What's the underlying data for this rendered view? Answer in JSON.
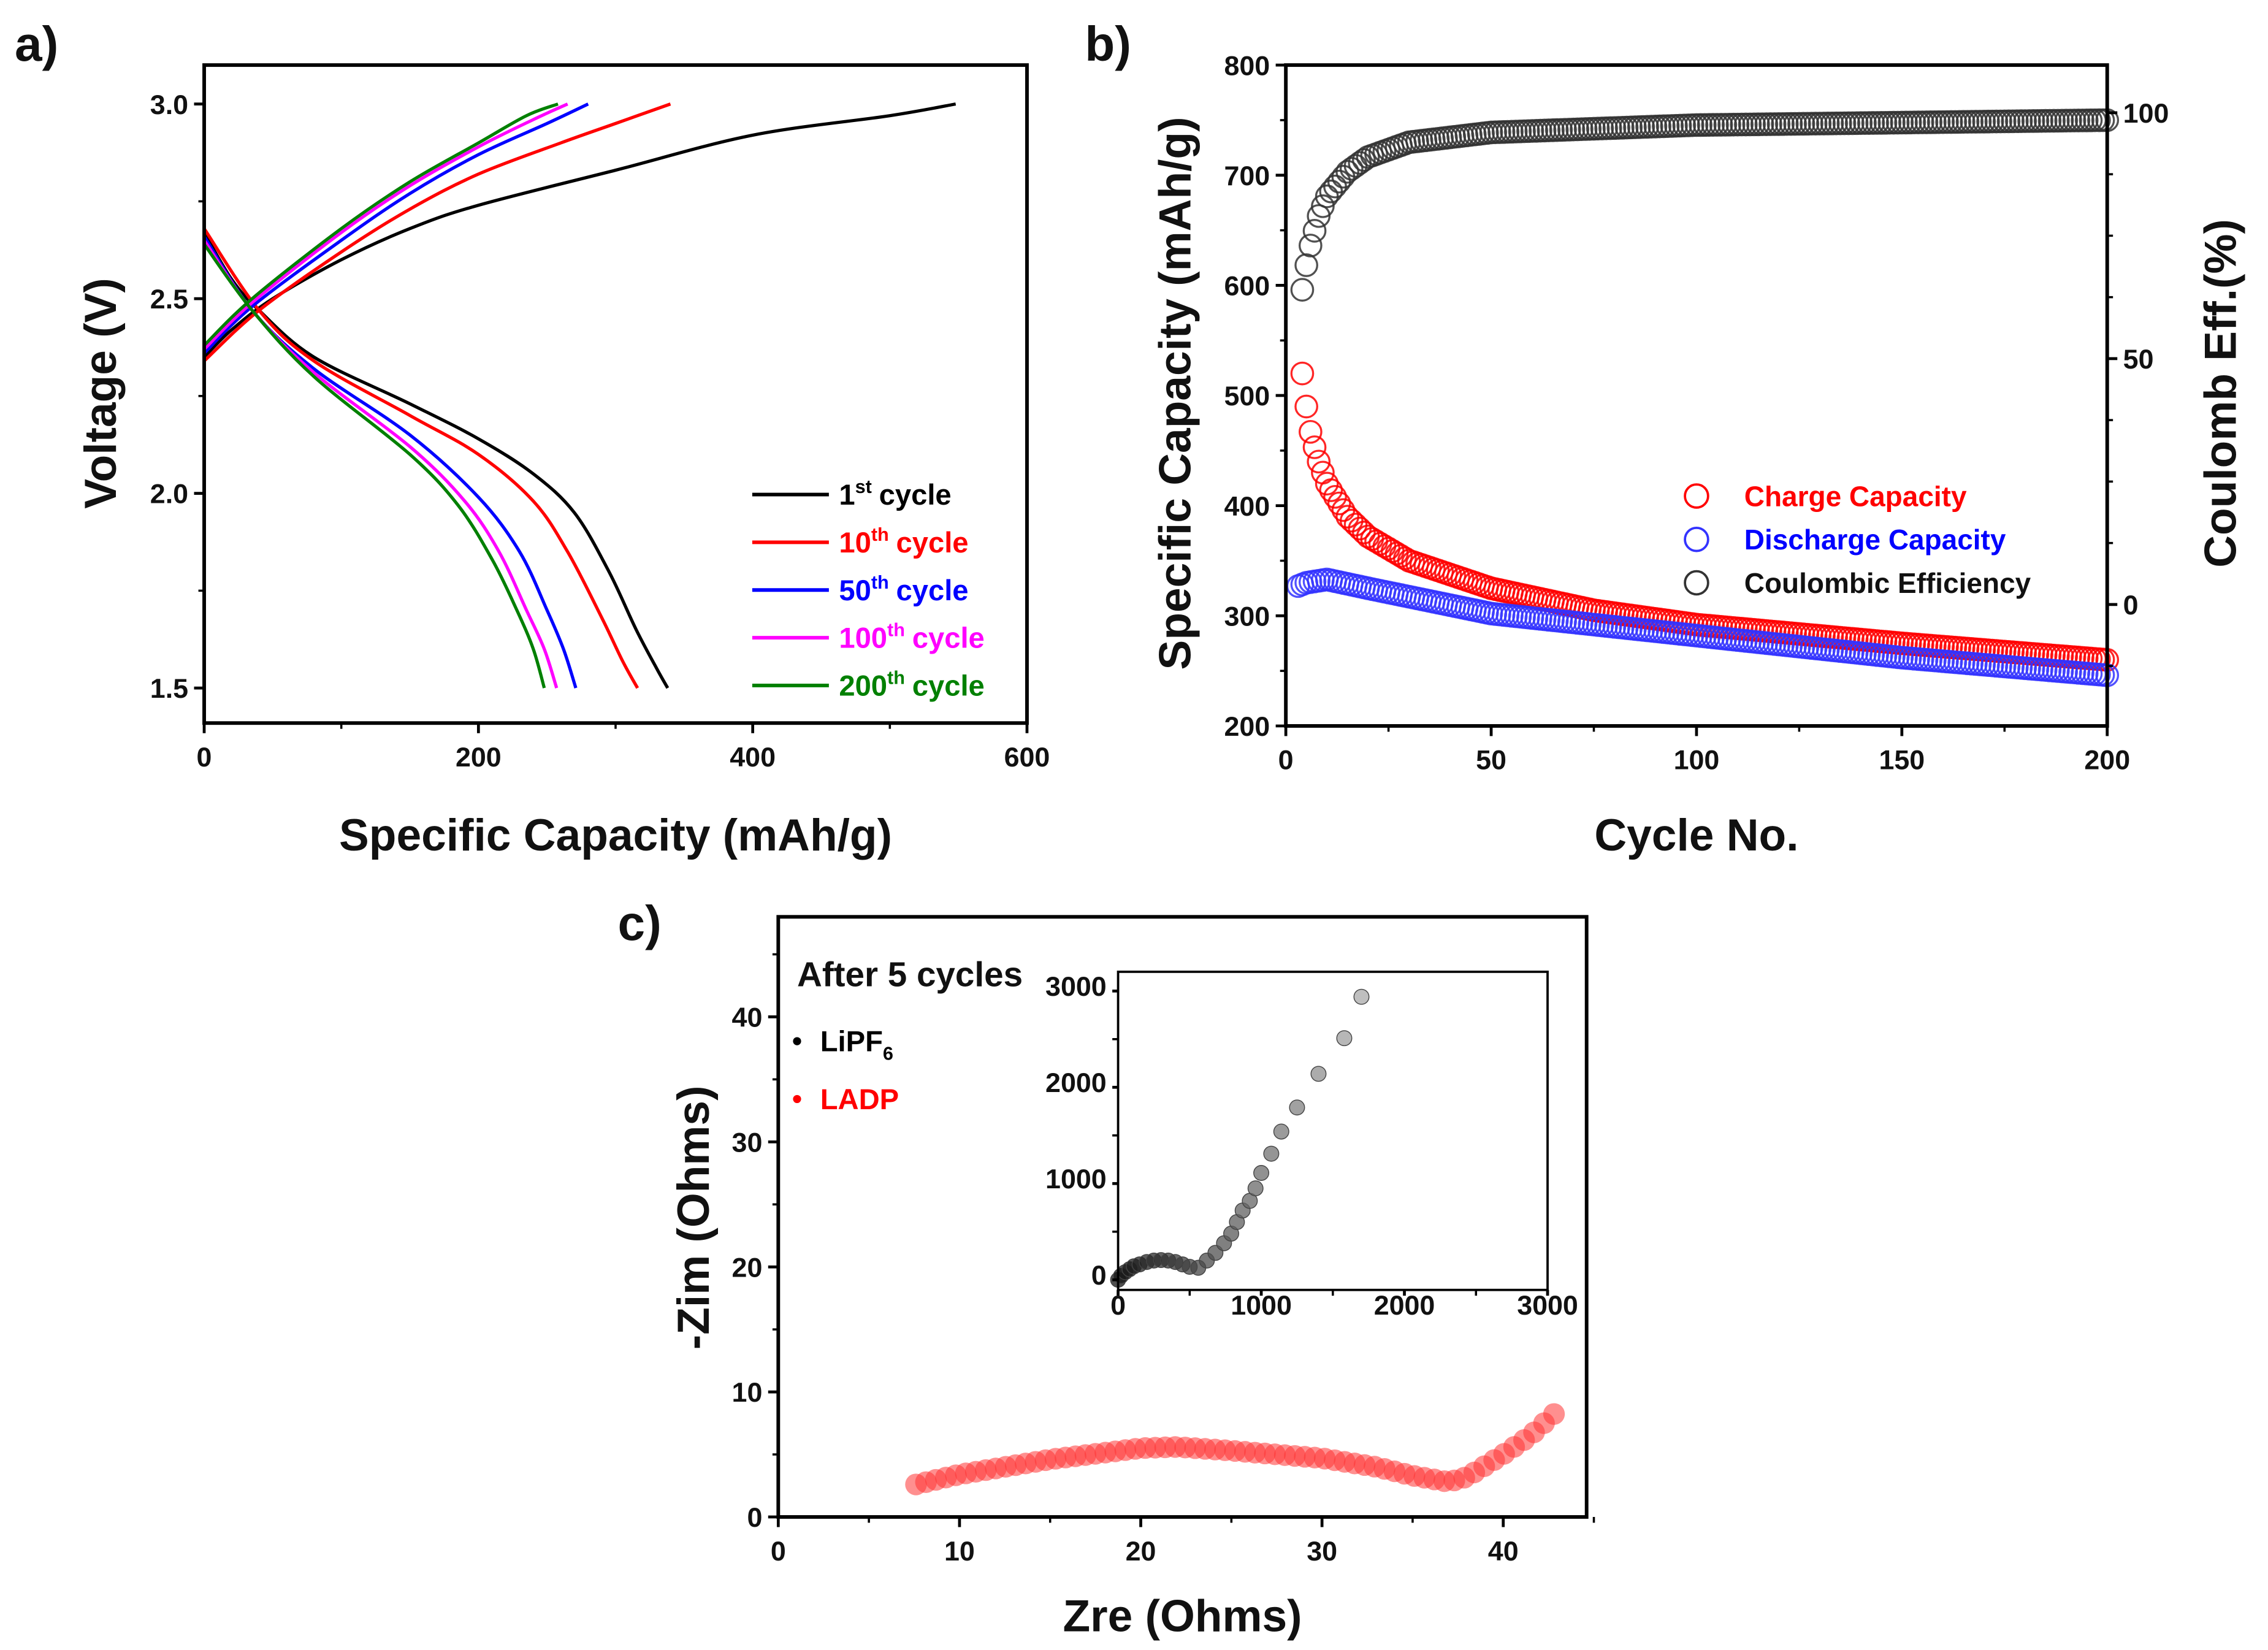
{
  "panel_labels": {
    "a": "a)",
    "b": "b)",
    "c": "c)"
  },
  "chart_data": [
    {
      "id": "a",
      "type": "line",
      "xlabel": "Specific Capacity (mAh/g)",
      "ylabel": "Voltage (V)",
      "xlim": [
        0,
        600
      ],
      "ylim": [
        1.41,
        3.1
      ],
      "xticks": [
        0,
        200,
        400,
        600
      ],
      "yticks": [
        1.5,
        2.0,
        2.5,
        3.0
      ],
      "ytick_labels": [
        "1.5",
        "2.0",
        "2.5",
        "3.0"
      ],
      "legend_position": "bottom-right",
      "series": [
        {
          "num": "1",
          "sup": "st",
          "label": "cycle",
          "color": "#000000",
          "discharge": [
            [
              0,
              2.67
            ],
            [
              20,
              2.55
            ],
            [
              40,
              2.47
            ],
            [
              80,
              2.35
            ],
            [
              150,
              2.23
            ],
            [
              200,
              2.14
            ],
            [
              240,
              2.05
            ],
            [
              270,
              1.95
            ],
            [
              295,
              1.8
            ],
            [
              315,
              1.65
            ],
            [
              330,
              1.55
            ],
            [
              338,
              1.5
            ]
          ],
          "charge": [
            [
              0,
              2.35
            ],
            [
              20,
              2.42
            ],
            [
              50,
              2.5
            ],
            [
              100,
              2.6
            ],
            [
              150,
              2.68
            ],
            [
              200,
              2.74
            ],
            [
              300,
              2.83
            ],
            [
              400,
              2.92
            ],
            [
              500,
              2.97
            ],
            [
              548,
              3.0
            ]
          ]
        },
        {
          "num": "10",
          "sup": "th",
          "label": "cycle",
          "color": "#ff0000",
          "discharge": [
            [
              0,
              2.68
            ],
            [
              40,
              2.47
            ],
            [
              80,
              2.34
            ],
            [
              150,
              2.2
            ],
            [
              200,
              2.1
            ],
            [
              240,
              1.98
            ],
            [
              265,
              1.85
            ],
            [
              290,
              1.68
            ],
            [
              305,
              1.57
            ],
            [
              316,
              1.5
            ]
          ],
          "charge": [
            [
              0,
              2.34
            ],
            [
              40,
              2.47
            ],
            [
              100,
              2.62
            ],
            [
              150,
              2.73
            ],
            [
              200,
              2.82
            ],
            [
              260,
              2.9
            ],
            [
              300,
              2.95
            ],
            [
              340,
              3.0
            ]
          ]
        },
        {
          "num": "50",
          "sup": "th",
          "label": "cycle",
          "color": "#0000ff",
          "discharge": [
            [
              0,
              2.66
            ],
            [
              35,
              2.47
            ],
            [
              80,
              2.32
            ],
            [
              150,
              2.15
            ],
            [
              200,
              1.99
            ],
            [
              230,
              1.85
            ],
            [
              250,
              1.7
            ],
            [
              262,
              1.6
            ],
            [
              271,
              1.5
            ]
          ],
          "charge": [
            [
              0,
              2.36
            ],
            [
              35,
              2.48
            ],
            [
              100,
              2.65
            ],
            [
              150,
              2.77
            ],
            [
              200,
              2.87
            ],
            [
              250,
              2.95
            ],
            [
              280,
              3.0
            ]
          ]
        },
        {
          "num": "100",
          "sup": "th",
          "label": "cycle",
          "color": "#ff00ff",
          "discharge": [
            [
              0,
              2.65
            ],
            [
              35,
              2.47
            ],
            [
              80,
              2.31
            ],
            [
              150,
              2.12
            ],
            [
              190,
              1.98
            ],
            [
              215,
              1.85
            ],
            [
              235,
              1.7
            ],
            [
              248,
              1.6
            ],
            [
              257,
              1.5
            ]
          ],
          "charge": [
            [
              0,
              2.37
            ],
            [
              35,
              2.49
            ],
            [
              100,
              2.67
            ],
            [
              150,
              2.79
            ],
            [
              200,
              2.89
            ],
            [
              240,
              2.96
            ],
            [
              265,
              3.0
            ]
          ]
        },
        {
          "num": "200",
          "sup": "th",
          "label": "cycle",
          "color": "#008000",
          "discharge": [
            [
              0,
              2.64
            ],
            [
              35,
              2.47
            ],
            [
              80,
              2.3
            ],
            [
              150,
              2.1
            ],
            [
              185,
              1.97
            ],
            [
              210,
              1.83
            ],
            [
              228,
              1.7
            ],
            [
              240,
              1.6
            ],
            [
              248,
              1.5
            ]
          ],
          "charge": [
            [
              0,
              2.38
            ],
            [
              35,
              2.5
            ],
            [
              100,
              2.68
            ],
            [
              150,
              2.8
            ],
            [
              200,
              2.9
            ],
            [
              235,
              2.97
            ],
            [
              258,
              3.0
            ]
          ]
        }
      ]
    },
    {
      "id": "b",
      "type": "scatter",
      "xlabel": "Cycle No.",
      "ylabel": "Specific Capacity (mAh/g)",
      "y2label": "Coulomb Eff.(%)",
      "xlim": [
        0,
        200
      ],
      "ylim": [
        200,
        800
      ],
      "y2lim": [
        -24.7,
        109.7
      ],
      "xticks": [
        0,
        50,
        100,
        150,
        200
      ],
      "yticks": [
        200,
        300,
        400,
        500,
        600,
        700,
        800
      ],
      "y2ticks": [
        0,
        50,
        100
      ],
      "legend_position": "center-right",
      "series": [
        {
          "name": "Charge Capacity",
          "color": "#ff0000",
          "axis": "left",
          "x_start": 4,
          "points": [
            [
              4,
              520
            ],
            [
              5,
              490
            ],
            [
              6,
              467
            ],
            [
              7,
              453
            ],
            [
              8,
              440
            ],
            [
              10,
              420
            ],
            [
              15,
              390
            ],
            [
              20,
              372
            ],
            [
              30,
              350
            ],
            [
              50,
              325
            ],
            [
              75,
              305
            ],
            [
              100,
              292
            ],
            [
              150,
              275
            ],
            [
              200,
              260
            ]
          ]
        },
        {
          "name": "Discharge Capacity",
          "color": "#3333ff",
          "axis": "left",
          "x_start": 3,
          "points": [
            [
              3,
              327
            ],
            [
              5,
              330
            ],
            [
              10,
              333
            ],
            [
              20,
              325
            ],
            [
              50,
              302
            ],
            [
              100,
              282
            ],
            [
              150,
              262
            ],
            [
              200,
              246
            ]
          ]
        },
        {
          "name": "Coulombic Efficiency",
          "color": "#333333",
          "axis": "right",
          "x_start": 4,
          "points": [
            [
              4,
              64
            ],
            [
              5,
              69
            ],
            [
              6,
              73
            ],
            [
              7,
              76
            ],
            [
              8,
              79
            ],
            [
              10,
              83
            ],
            [
              15,
              88
            ],
            [
              20,
              91
            ],
            [
              30,
              94
            ],
            [
              50,
              96
            ],
            [
              100,
              97.5
            ],
            [
              200,
              98.5
            ]
          ]
        }
      ]
    },
    {
      "id": "c",
      "type": "scatter",
      "title": "After 5 cycles",
      "xlabel": "Zre (Ohms)",
      "ylabel": "-Zim (Ohms)",
      "xlim": [
        0,
        44.6
      ],
      "ylim": [
        0,
        48
      ],
      "xticks": [
        0,
        10,
        20,
        30,
        40
      ],
      "yticks": [
        0,
        10,
        20,
        30,
        40
      ],
      "legend": [
        {
          "name": "LiPF",
          "sub": "6",
          "color": "#000000"
        },
        {
          "name": "LADP",
          "color": "#ff0000"
        }
      ],
      "series": [
        {
          "name": "LADP",
          "color": "#ff3333",
          "points": [
            [
              7.6,
              2.6
            ],
            [
              10,
              3.4
            ],
            [
              15,
              4.6
            ],
            [
              20,
              5.5
            ],
            [
              22,
              5.6
            ],
            [
              25,
              5.3
            ],
            [
              30,
              4.7
            ],
            [
              33,
              4.0
            ],
            [
              35,
              3.3
            ],
            [
              37,
              2.8
            ],
            [
              38,
              3.2
            ],
            [
              40,
              5.0
            ],
            [
              41.5,
              6.5
            ],
            [
              43,
              8.5
            ]
          ]
        }
      ],
      "inset": {
        "xlim": [
          0,
          3000
        ],
        "ylim": [
          -105,
          3200
        ],
        "xticks": [
          0,
          1000,
          2000,
          3000
        ],
        "yticks": [
          0,
          1000,
          2000,
          3000
        ],
        "series": [
          {
            "name": "LiPF6",
            "color": "#000000",
            "points": [
              [
                0,
                0
              ],
              [
                20,
                40
              ],
              [
                50,
                80
              ],
              [
                80,
                110
              ],
              [
                110,
                140
              ],
              [
                150,
                160
              ],
              [
                200,
                185
              ],
              [
                250,
                200
              ],
              [
                300,
                205
              ],
              [
                350,
                200
              ],
              [
                400,
                185
              ],
              [
                450,
                160
              ],
              [
                500,
                135
              ],
              [
                560,
                125
              ],
              [
                620,
                200
              ],
              [
                680,
                280
              ],
              [
                740,
                380
              ],
              [
                790,
                480
              ],
              [
                830,
                600
              ],
              [
                870,
                720
              ],
              [
                920,
                820
              ],
              [
                960,
                950
              ],
              [
                1000,
                1110
              ],
              [
                1070,
                1310
              ],
              [
                1140,
                1540
              ],
              [
                1250,
                1790
              ],
              [
                1400,
                2140
              ],
              [
                1580,
                2510
              ],
              [
                1700,
                2940
              ]
            ]
          }
        ]
      }
    }
  ]
}
